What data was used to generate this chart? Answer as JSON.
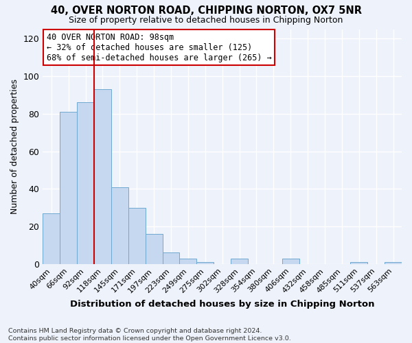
{
  "title1": "40, OVER NORTON ROAD, CHIPPING NORTON, OX7 5NR",
  "title2": "Size of property relative to detached houses in Chipping Norton",
  "xlabel": "Distribution of detached houses by size in Chipping Norton",
  "ylabel": "Number of detached properties",
  "bar_labels": [
    "40sqm",
    "66sqm",
    "92sqm",
    "118sqm",
    "145sqm",
    "171sqm",
    "197sqm",
    "223sqm",
    "249sqm",
    "275sqm",
    "302sqm",
    "328sqm",
    "354sqm",
    "380sqm",
    "406sqm",
    "432sqm",
    "458sqm",
    "485sqm",
    "511sqm",
    "537sqm",
    "563sqm"
  ],
  "bar_values": [
    27,
    81,
    86,
    93,
    41,
    30,
    16,
    6,
    3,
    1,
    0,
    3,
    0,
    0,
    3,
    0,
    0,
    0,
    1,
    0,
    1
  ],
  "bar_color": "#c5d8f0",
  "bar_edge_color": "#6fa8d0",
  "vline_x": 2.0,
  "vline_color": "#cc0000",
  "annotation_text": "40 OVER NORTON ROAD: 98sqm\n← 32% of detached houses are smaller (125)\n68% of semi-detached houses are larger (265) →",
  "annotation_box_color": "#ffffff",
  "annotation_edge_color": "#cc0000",
  "ylim": [
    0,
    125
  ],
  "yticks": [
    0,
    20,
    40,
    60,
    80,
    100,
    120
  ],
  "background_color": "#eef2fa",
  "grid_color": "#ffffff",
  "footnote": "Contains HM Land Registry data © Crown copyright and database right 2024.\nContains public sector information licensed under the Open Government Licence v3.0."
}
